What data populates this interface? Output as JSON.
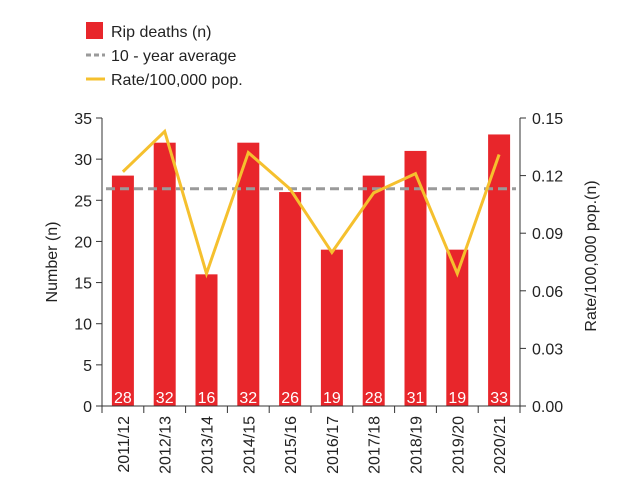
{
  "chart_data": {
    "type": "bar",
    "title": "",
    "categories": [
      "2011/12",
      "2012/13",
      "2013/14",
      "2014/15",
      "2015/16",
      "2016/17",
      "2017/18",
      "2018/19",
      "2019/20",
      "2020/21"
    ],
    "series": [
      {
        "name": "Rip deaths (n)",
        "type": "bar",
        "axis": "left",
        "color": "#e8262b",
        "values": [
          28,
          32,
          16,
          32,
          26,
          19,
          28,
          31,
          19,
          33
        ]
      },
      {
        "name": "10 - year average",
        "type": "line",
        "style": "dashed",
        "axis": "left",
        "color": "#9a9a9a",
        "values": [
          26.4,
          26.4,
          26.4,
          26.4,
          26.4,
          26.4,
          26.4,
          26.4,
          26.4,
          26.4
        ]
      },
      {
        "name": "Rate/100,000 pop.",
        "type": "line",
        "axis": "right",
        "color": "#f5c02e",
        "values": [
          0.122,
          0.143,
          0.069,
          0.132,
          0.113,
          0.08,
          0.111,
          0.121,
          0.069,
          0.131
        ]
      }
    ],
    "data_labels": [
      "28",
      "32",
      "16",
      "32",
      "26",
      "19",
      "28",
      "31",
      "19",
      "33"
    ],
    "ylabel": "Number (n)",
    "ylabel_right": "Rate/100,000 pop.(n)",
    "ylim": [
      0,
      35
    ],
    "yticks": [
      "0",
      "5",
      "10",
      "15",
      "20",
      "25",
      "30",
      "35"
    ],
    "ylim_right": [
      0,
      0.15
    ],
    "yticks_right": [
      "0.00",
      "0.03",
      "0.06",
      "0.09",
      "0.12",
      "0.15"
    ],
    "legend_position": "top-left",
    "grid": false
  }
}
